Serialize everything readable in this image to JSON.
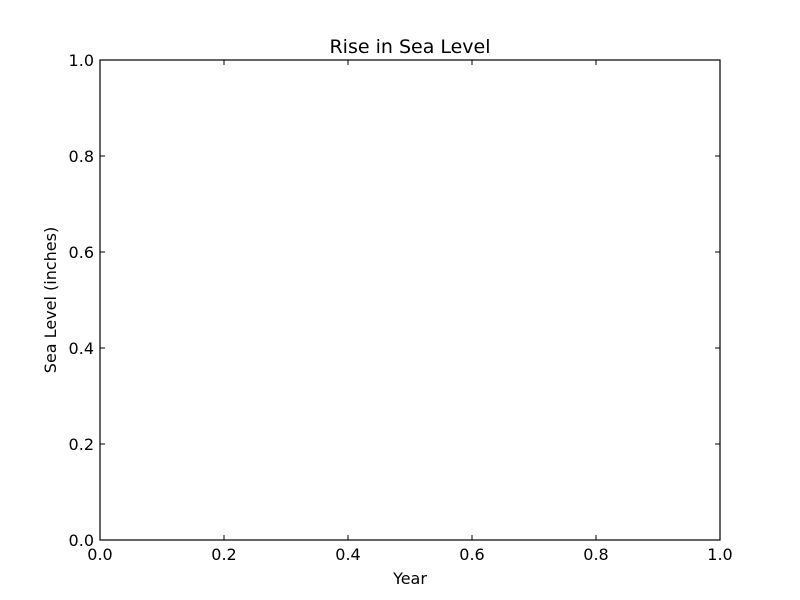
{
  "chart_data": {
    "type": "line",
    "title": "Rise in Sea Level",
    "xlabel": "Year",
    "ylabel": "Sea Level (inches)",
    "xlim": [
      0.0,
      1.0
    ],
    "ylim": [
      0.0,
      1.0
    ],
    "x_ticks": [
      "0.0",
      "0.2",
      "0.4",
      "0.6",
      "0.8",
      "1.0"
    ],
    "y_ticks": [
      "0.0",
      "0.2",
      "0.4",
      "0.6",
      "0.8",
      "1.0"
    ],
    "grid": false,
    "series": []
  }
}
